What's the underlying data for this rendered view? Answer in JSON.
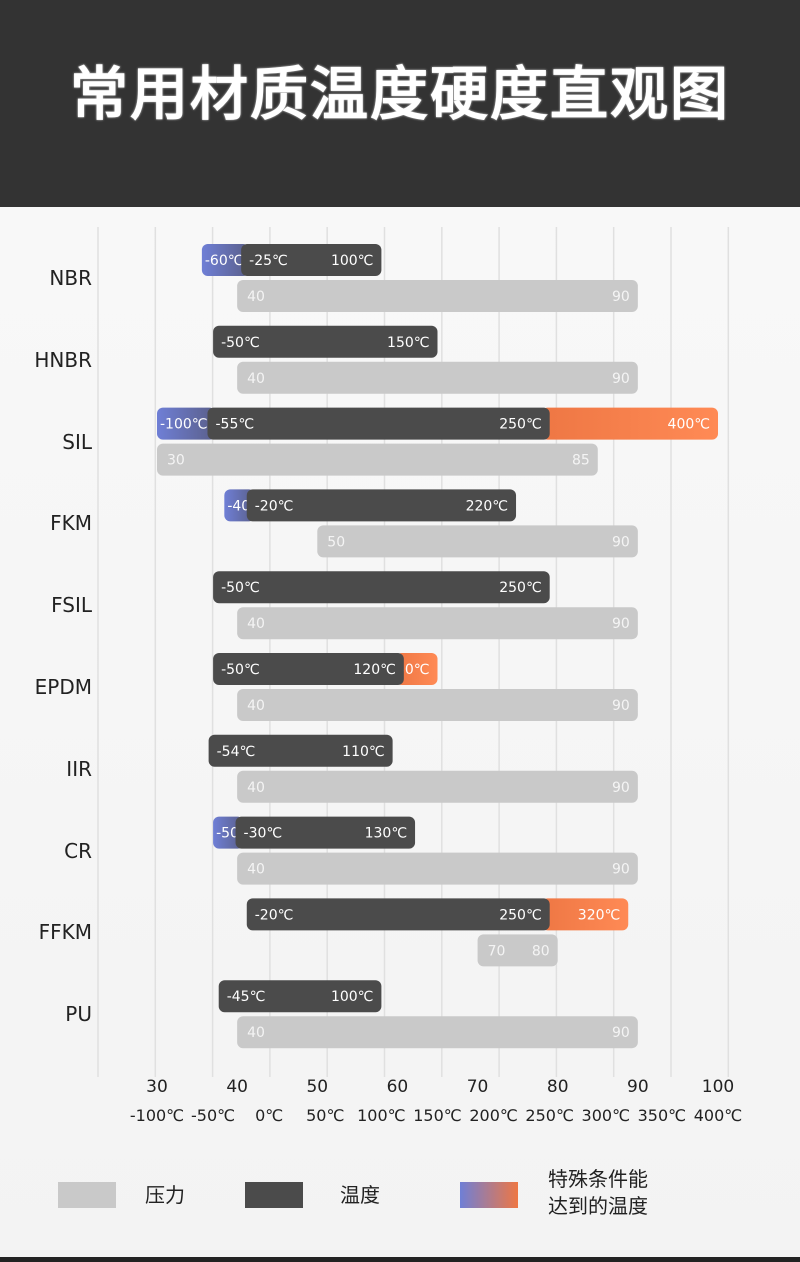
{
  "title": "常用材质温度硬度直观图",
  "colors": {
    "pressure": "#c9c9c9",
    "temperature": "#4b4b4b",
    "special_cold": "#6f7fd6",
    "special_hot": "#ee7744",
    "pressure_text": "#f4f4f4",
    "temperature_text": "#ffffff"
  },
  "chart_data": {
    "type": "bar",
    "categories": [
      "NBR",
      "HNBR",
      "SIL",
      "FKM",
      "FSIL",
      "EPDM",
      "IIR",
      "CR",
      "FFKM",
      "PU"
    ],
    "hardness_axis": {
      "ticks": [
        "30",
        "40",
        "50",
        "60",
        "70",
        "80",
        "90",
        "100"
      ],
      "range": [
        30,
        100
      ]
    },
    "temperature_axis": {
      "ticks": [
        "-100℃",
        "-50℃",
        "0℃",
        "50℃",
        "100℃",
        "150℃",
        "200℃",
        "250℃",
        "300℃",
        "350℃",
        "400℃"
      ],
      "range": [
        -100,
        400
      ]
    },
    "series": [
      {
        "name": "压力",
        "type": "range",
        "values": [
          [
            40,
            90
          ],
          [
            40,
            90
          ],
          [
            30,
            85
          ],
          [
            50,
            90
          ],
          [
            40,
            90
          ],
          [
            40,
            90
          ],
          [
            40,
            90
          ],
          [
            40,
            90
          ],
          [
            70,
            80
          ],
          [
            40,
            90
          ]
        ]
      },
      {
        "name": "温度",
        "type": "range",
        "values": [
          [
            -25,
            100
          ],
          [
            -50,
            150
          ],
          [
            -55,
            250
          ],
          [
            -20,
            220
          ],
          [
            -50,
            250
          ],
          [
            -50,
            120
          ],
          [
            -54,
            110
          ],
          [
            -30,
            130
          ],
          [
            -20,
            250
          ],
          [
            -45,
            100
          ]
        ]
      },
      {
        "name": "特殊条件能达到的温度",
        "type": "range",
        "values": [
          [
            -60,
            null
          ],
          null,
          [
            -100,
            400
          ],
          [
            -40,
            null
          ],
          null,
          [
            null,
            150
          ],
          null,
          [
            -50,
            null
          ],
          [
            null,
            320
          ],
          null
        ]
      }
    ],
    "rows": [
      {
        "name": "NBR",
        "pressure": {
          "min": "40",
          "max": "90"
        },
        "temp": {
          "min": "-25℃",
          "max": "100℃"
        },
        "special_low": "-60℃",
        "special_high": ""
      },
      {
        "name": "HNBR",
        "pressure": {
          "min": "40",
          "max": "90"
        },
        "temp": {
          "min": "-50℃",
          "max": "150℃"
        },
        "special_low": "",
        "special_high": ""
      },
      {
        "name": "SIL",
        "pressure": {
          "min": "30",
          "max": "85"
        },
        "temp": {
          "min": "-55℃",
          "max": "250℃"
        },
        "special_low": "-100℃",
        "special_high": "400℃"
      },
      {
        "name": "FKM",
        "pressure": {
          "min": "50",
          "max": "90"
        },
        "temp": {
          "min": "-20℃",
          "max": "220℃"
        },
        "special_low": "-40℃",
        "special_high": ""
      },
      {
        "name": "FSIL",
        "pressure": {
          "min": "40",
          "max": "90"
        },
        "temp": {
          "min": "-50℃",
          "max": "250℃"
        },
        "special_low": "",
        "special_high": ""
      },
      {
        "name": "EPDM",
        "pressure": {
          "min": "40",
          "max": "90"
        },
        "temp": {
          "min": "-50℃",
          "max": "120℃"
        },
        "special_low": "",
        "special_high": "150℃"
      },
      {
        "name": "IIR",
        "pressure": {
          "min": "40",
          "max": "90"
        },
        "temp": {
          "min": "-54℃",
          "max": "110℃"
        },
        "special_low": "",
        "special_high": ""
      },
      {
        "name": "CR",
        "pressure": {
          "min": "40",
          "max": "90"
        },
        "temp": {
          "min": "-30℃",
          "max": "130℃"
        },
        "special_low": "-50℃",
        "special_high": ""
      },
      {
        "name": "FFKM",
        "pressure": {
          "min": "70",
          "max": "80"
        },
        "temp": {
          "min": "-20℃",
          "max": "250℃"
        },
        "special_low": "",
        "special_high": "320℃"
      },
      {
        "name": "PU",
        "pressure": {
          "min": "40",
          "max": "90"
        },
        "temp": {
          "min": "-45℃",
          "max": "100℃"
        },
        "special_low": "",
        "special_high": ""
      }
    ],
    "grid": true
  },
  "legend": {
    "pressure": "压力",
    "temperature": "温度",
    "special_line1": "特殊条件能",
    "special_line2": "达到的温度"
  }
}
